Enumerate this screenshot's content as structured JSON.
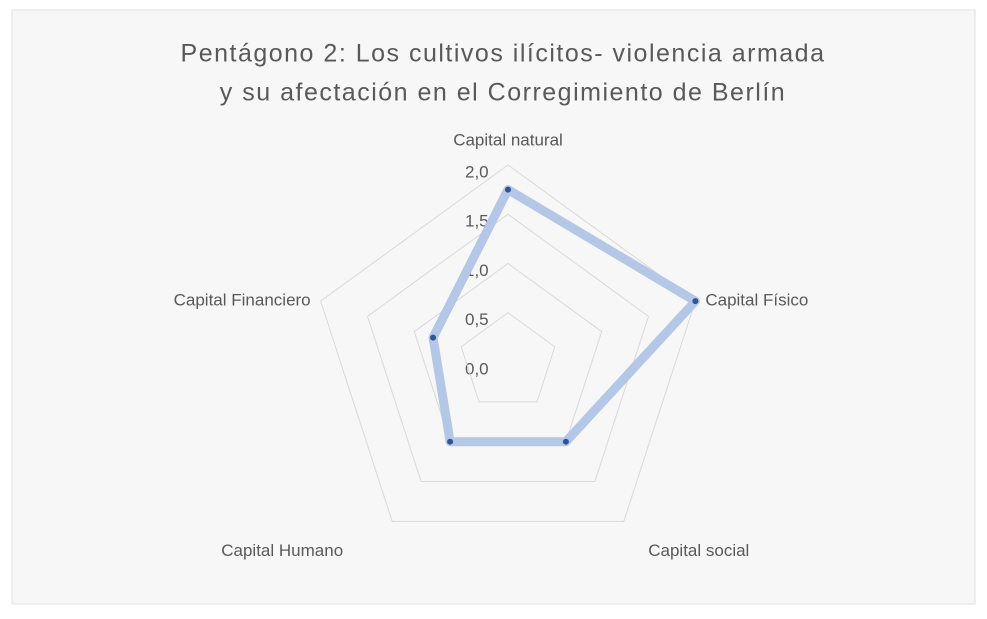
{
  "chart_data": {
    "type": "radar",
    "title": [
      "Pentágono 2: Los cultivos ilícitos- violencia armada",
      "y su afectación en el Corregimiento de Berlín"
    ],
    "categories": [
      "Capital natural",
      "Capital Físico",
      "Capital social",
      "Capital Humano",
      "Capital Financiero"
    ],
    "values": [
      1.75,
      2.0,
      1.0,
      1.0,
      0.8
    ],
    "color": "#b4c7e7",
    "marker_color": "#2f5597",
    "ylim": [
      0,
      2
    ],
    "yticks": [
      {
        "value": 0,
        "label": "0,0"
      },
      {
        "value": 0.5,
        "label": "0,5"
      },
      {
        "value": 1,
        "label": "1,0"
      },
      {
        "value": 1.5,
        "label": "1,5"
      },
      {
        "value": 2,
        "label": "2,0"
      }
    ],
    "grid": true
  }
}
